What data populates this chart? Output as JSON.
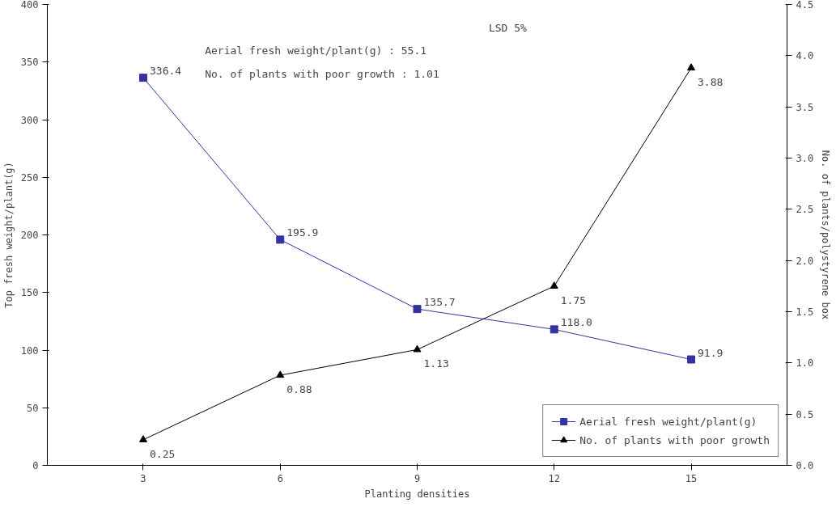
{
  "chart_data": {
    "type": "line",
    "xlabel": "Planting densities",
    "ylabel": "Top fresh weight/plant(g)",
    "y2label": "No. of plants/polystyrene box",
    "categories": [
      "3",
      "6",
      "9",
      "12",
      "15"
    ],
    "series": [
      {
        "name": "Aerial fresh weight/plant(g)",
        "color": "#3333a0",
        "marker": "square",
        "values": [
          336.4,
          195.9,
          135.7,
          118.0,
          91.9
        ],
        "value_labels": [
          "336.4",
          "195.9",
          "135.7",
          "118.0",
          "91.9"
        ]
      },
      {
        "name": "No. of plants with poor growth",
        "color": "#000000",
        "marker": "triangle",
        "axis": "y2",
        "values": [
          0.25,
          0.88,
          1.13,
          1.75,
          3.88
        ],
        "value_labels": [
          "0.25",
          "0.88",
          "1.13",
          "1.75",
          "3.88"
        ]
      }
    ],
    "ylim": [
      0,
      400
    ],
    "yticks": [
      0,
      50,
      100,
      150,
      200,
      250,
      300,
      350,
      400
    ],
    "y2lim": [
      0,
      4.5
    ],
    "y2ticks": [
      {
        "value": 0,
        "label": "0.0"
      },
      {
        "value": 0.5,
        "label": "0.5"
      },
      {
        "value": 1,
        "label": "1.0"
      },
      {
        "value": 1.5,
        "label": "1.5"
      },
      {
        "value": 2,
        "label": "2.0"
      },
      {
        "value": 2.5,
        "label": "2.5"
      },
      {
        "value": 3,
        "label": "3.0"
      },
      {
        "value": 3.5,
        "label": "3.5"
      },
      {
        "value": 4,
        "label": "4.0"
      },
      {
        "value": 4.5,
        "label": "4.5"
      }
    ],
    "annotations": [
      "LSD 5%",
      "Aerial fresh weight/plant(g)        : 55.1",
      "No. of plants with poor growth : 1.01"
    ],
    "legend": "bottom right",
    "grid": false,
    "line_style": "solid"
  }
}
